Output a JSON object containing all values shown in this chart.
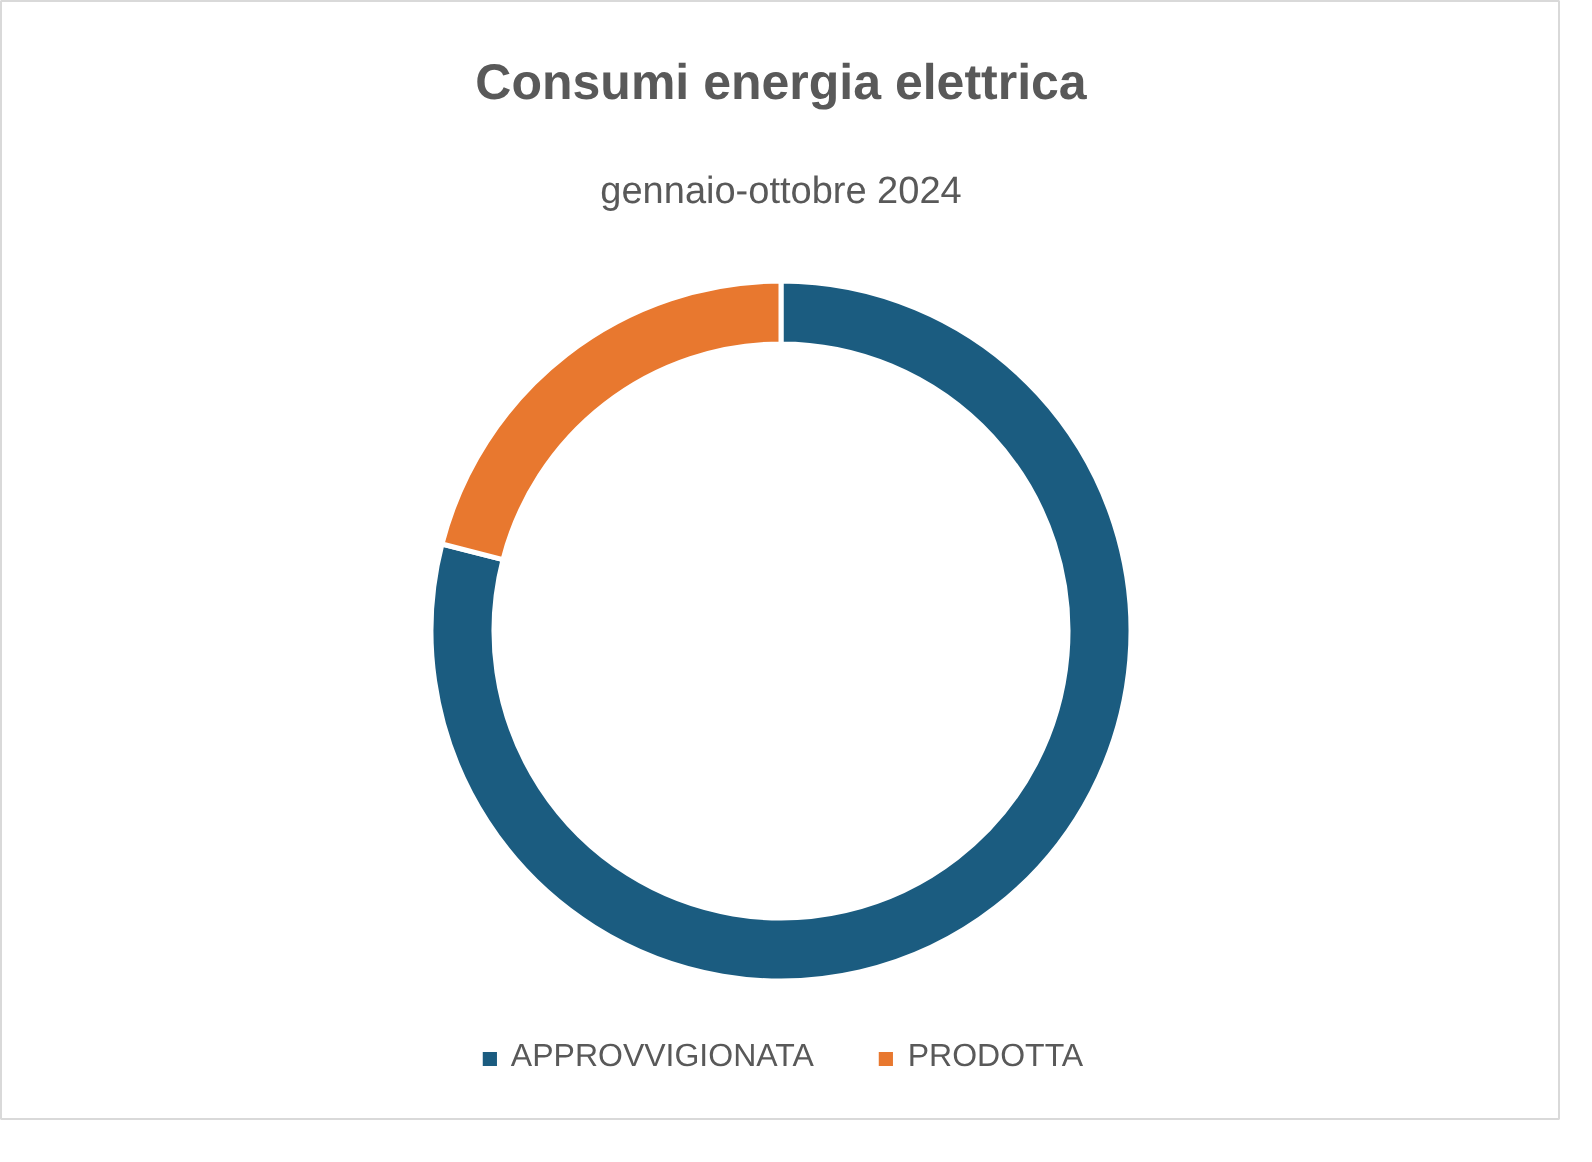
{
  "chart_data": {
    "type": "donut",
    "title": "Consumi energia elettrica",
    "subtitle": "gennaio-ottobre 2024",
    "categories": [
      "APPROVVIGIONATA",
      "PRODOTTA"
    ],
    "values": [
      79,
      21
    ],
    "colors": [
      "#1b5c80",
      "#e8782f"
    ],
    "legend": "bottom"
  }
}
